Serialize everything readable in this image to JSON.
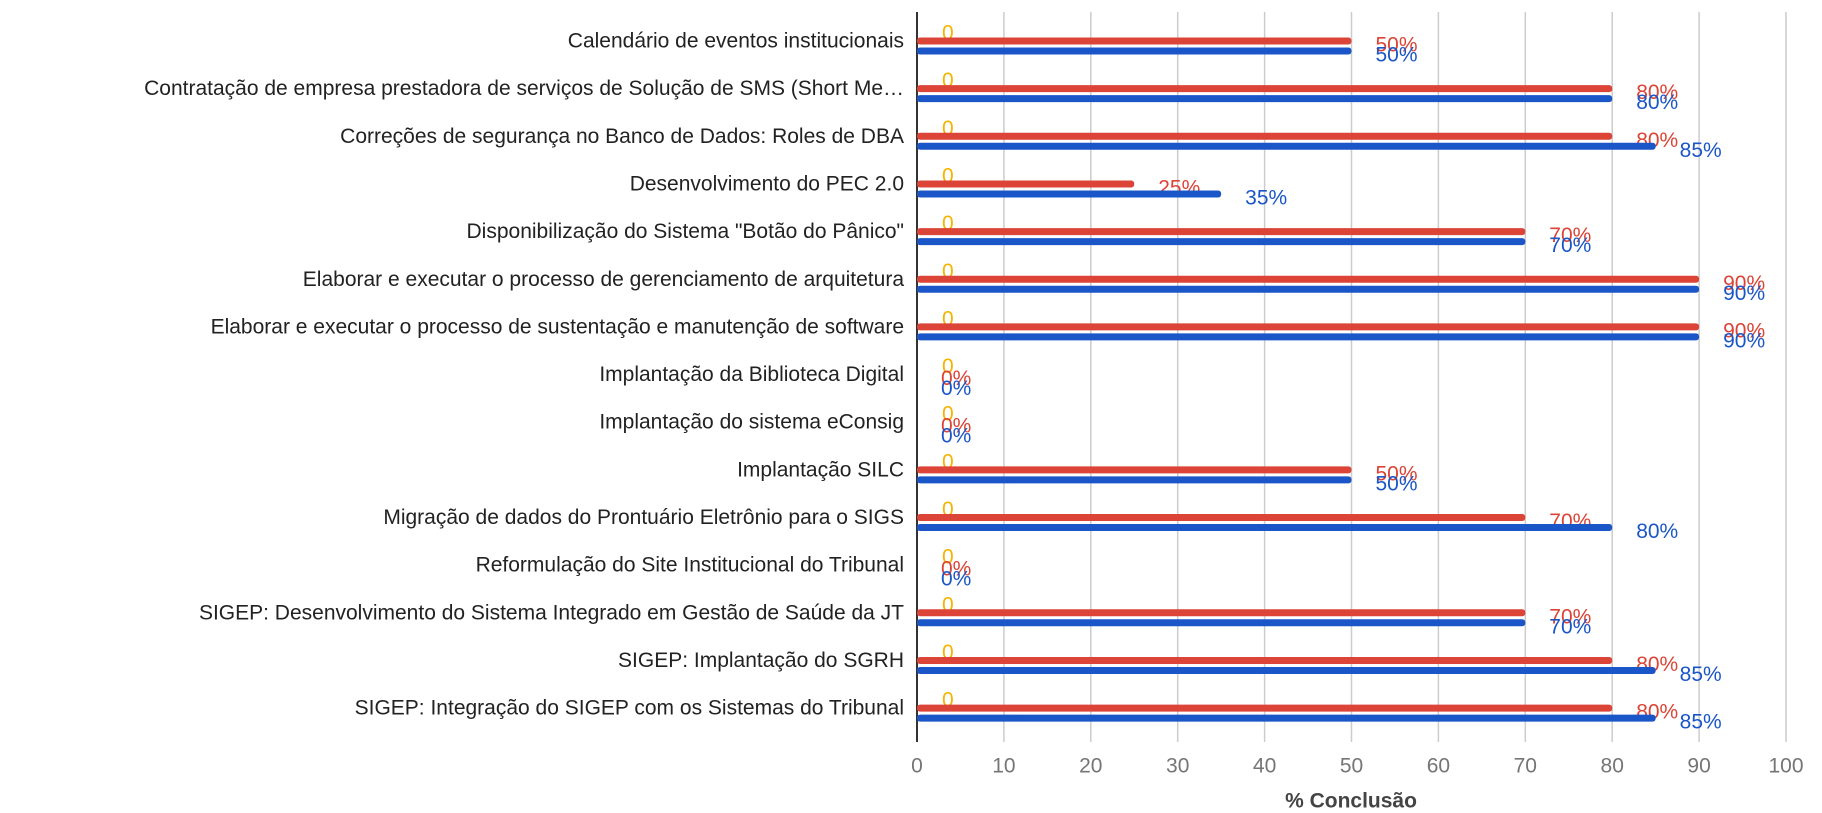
{
  "chart_data": {
    "type": "bar",
    "orientation": "horizontal",
    "xlabel": "% Conclusão",
    "categories": [
      "Calendário de eventos institucionais",
      "Contratação de empresa prestadora de serviços de Solução de SMS (Short Me…",
      "Correções de segurança no Banco de Dados: Roles de DBA",
      "Desenvolvimento do PEC 2.0",
      "Disponibilização do Sistema \"Botão do Pânico\"",
      "Elaborar e executar o processo de gerenciamento de arquitetura",
      "Elaborar e executar o processo de sustentação e manutenção de software",
      "Implantação da Biblioteca Digital",
      "Implantação do sistema eConsig",
      "Implantação SILC",
      "Migração de dados do Prontuário Eletrônio para o SIGS",
      "Reformulação do Site Institucional do Tribunal",
      "SIGEP: Desenvolvimento do Sistema Integrado em Gestão de Saúde da JT",
      "SIGEP: Implantação do SGRH",
      "SIGEP: Integração do SIGEP com os Sistemas do Tribunal"
    ],
    "series": [
      {
        "color": "#f4b400",
        "values": [
          0,
          0,
          0,
          0,
          0,
          0,
          0,
          0,
          0,
          0,
          0,
          0,
          0,
          0,
          0
        ]
      },
      {
        "color": "#db4437",
        "values": [
          50,
          80,
          80,
          25,
          70,
          90,
          90,
          0,
          0,
          50,
          70,
          0,
          70,
          80,
          80
        ],
        "value_labels": [
          "50%",
          "80%",
          "80%",
          "25%",
          "70%",
          "90%",
          "90%",
          "0%",
          "0%",
          "50%",
          "70%",
          "0%",
          "70%",
          "80%",
          "80%"
        ]
      },
      {
        "color": "#1a56c8",
        "values": [
          50,
          80,
          85,
          35,
          70,
          90,
          90,
          0,
          0,
          50,
          80,
          0,
          70,
          85,
          85
        ],
        "value_labels": [
          "50%",
          "80%",
          "85%",
          "35%",
          "70%",
          "90%",
          "90%",
          "0%",
          "0%",
          "50%",
          "80%",
          "0%",
          "70%",
          "85%",
          "85%"
        ]
      }
    ],
    "xlim": [
      0,
      100
    ],
    "xticks": [
      0,
      10,
      20,
      30,
      40,
      50,
      60,
      70,
      80,
      90,
      100
    ],
    "grid": true
  }
}
